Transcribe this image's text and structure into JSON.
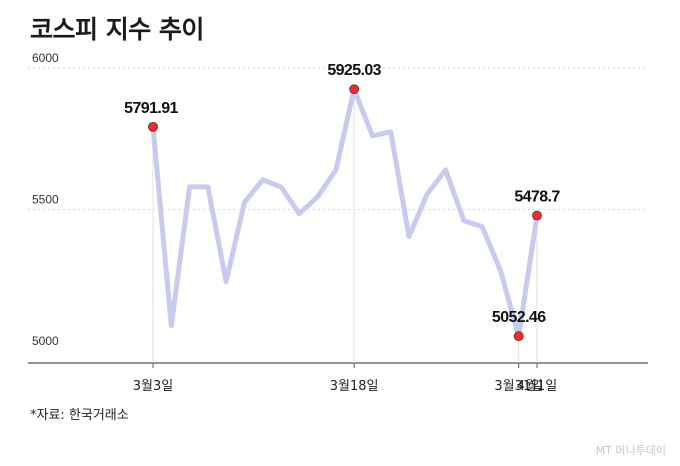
{
  "title": "코스피 지수 추이",
  "source": "*자료: 한국거래소",
  "credit": "MT 머니투데이",
  "colors": {
    "line": "#c8cbef",
    "marker": "#e8312e",
    "grid": "#d6d6d6",
    "axis": "#555555"
  },
  "chart_data": {
    "type": "line",
    "ylim": [
      5000,
      6000
    ],
    "yticks": [
      5000,
      5500,
      6000
    ],
    "xtick_labels": [
      {
        "index": 0,
        "label": "3월3일"
      },
      {
        "index": 11,
        "label": "3월18일"
      },
      {
        "index": 20,
        "label": "3월31일"
      },
      {
        "index": 21,
        "label": "4월1일"
      }
    ],
    "values": [
      5791.91,
      5090,
      5580,
      5580,
      5245,
      5525,
      5605,
      5580,
      5485,
      5545,
      5640,
      5925.03,
      5760,
      5775,
      5405,
      5555,
      5640,
      5460,
      5440,
      5285,
      5052.46,
      5478.7
    ],
    "highlights": [
      {
        "index": 0,
        "label": "5791.91"
      },
      {
        "index": 11,
        "label": "5925.03"
      },
      {
        "index": 20,
        "label": "5052.46"
      },
      {
        "index": 21,
        "label": "5478.7"
      }
    ]
  }
}
